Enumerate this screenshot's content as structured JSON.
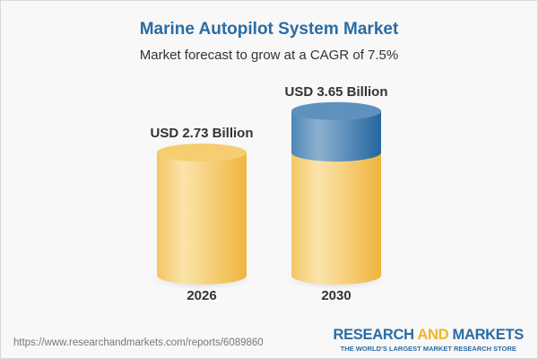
{
  "title": "Marine Autopilot System Market",
  "subtitle": "Market forecast to grow at a CAGR of 7.5%",
  "chart_data": {
    "type": "bar",
    "style": "3d-cylinder",
    "categories": [
      "2026",
      "2030"
    ],
    "values": [
      2.73,
      3.65
    ],
    "data_labels": [
      "USD 2.73 Billion",
      "USD 3.65 Billion"
    ],
    "unit": "USD Billion",
    "cagr": "7.5%",
    "colors": {
      "base": "#f3c35c",
      "growth": "#3f79ad"
    }
  },
  "footer": {
    "url": "https://www.researchandmarkets.com/reports/6089860",
    "logo_part1": "RESEARCH ",
    "logo_part2": "AND",
    "logo_part3": " MARKETS",
    "tagline": "THE WORLD'S LARGEST MARKET RESEARCH STORE"
  }
}
